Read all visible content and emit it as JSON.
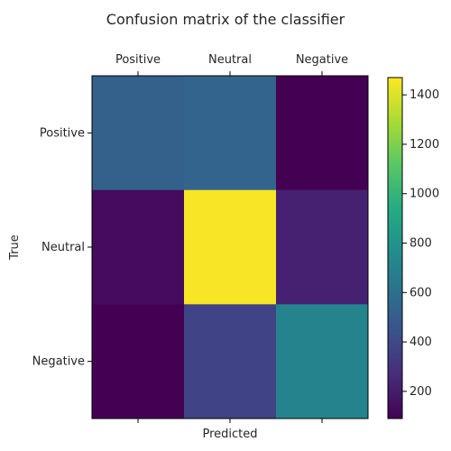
{
  "chart_data": {
    "type": "heatmap",
    "title": "Confusion matrix of the classifier",
    "xlabel": "Predicted",
    "ylabel": "True",
    "x_categories": [
      "Positive",
      "Neutral",
      "Negative"
    ],
    "y_categories": [
      "Positive",
      "Neutral",
      "Negative"
    ],
    "matrix": [
      [
        520,
        540,
        90
      ],
      [
        130,
        1460,
        220
      ],
      [
        90,
        370,
        710
      ]
    ],
    "colormap": "viridis",
    "colorbar": {
      "min": 90,
      "max": 1470,
      "ticks": [
        "200",
        "400",
        "600",
        "800",
        "1000",
        "1200",
        "1400"
      ]
    },
    "grid": false,
    "x_ticks_position": "top",
    "colorbar_position": "right"
  }
}
